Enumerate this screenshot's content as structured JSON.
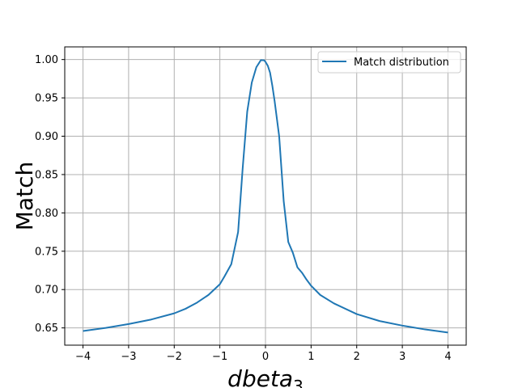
{
  "chart_data": {
    "type": "line",
    "title": "",
    "xlabel": "dbeta",
    "xlabel_subscript": "3",
    "ylabel": "Match",
    "xlim": [
      -4.4,
      4.4
    ],
    "ylim": [
      0.6275,
      1.0165
    ],
    "xticks": [
      -4,
      -3,
      -2,
      -1,
      0,
      1,
      2,
      3,
      4
    ],
    "xtick_labels": [
      "−4",
      "−3",
      "−2",
      "−1",
      "0",
      "1",
      "2",
      "3",
      "4"
    ],
    "yticks": [
      0.65,
      0.7,
      0.75,
      0.8,
      0.85,
      0.9,
      0.95,
      1.0
    ],
    "ytick_labels": [
      "0.65",
      "0.70",
      "0.75",
      "0.80",
      "0.85",
      "0.90",
      "0.95",
      "1.00"
    ],
    "grid": true,
    "legend_position": "top-right",
    "series": [
      {
        "name": "Match distribution",
        "color": "#1f77b4",
        "x": [
          -4.0,
          -3.5,
          -3.0,
          -2.5,
          -2.0,
          -1.75,
          -1.5,
          -1.25,
          -1.0,
          -0.9,
          -0.75,
          -0.6,
          -0.5,
          -0.4,
          -0.3,
          -0.2,
          -0.1,
          -0.03,
          0.0,
          0.05,
          0.1,
          0.15,
          0.2,
          0.3,
          0.4,
          0.5,
          0.6,
          0.7,
          0.8,
          0.9,
          1.0,
          1.2,
          1.5,
          2.0,
          2.5,
          3.0,
          3.5,
          4.0
        ],
        "y": [
          0.646,
          0.65,
          0.655,
          0.661,
          0.669,
          0.675,
          0.683,
          0.693,
          0.707,
          0.717,
          0.733,
          0.775,
          0.858,
          0.932,
          0.97,
          0.99,
          0.9993,
          0.999,
          0.997,
          0.992,
          0.983,
          0.966,
          0.946,
          0.9,
          0.815,
          0.762,
          0.748,
          0.729,
          0.722,
          0.713,
          0.705,
          0.693,
          0.682,
          0.668,
          0.659,
          0.653,
          0.648,
          0.644
        ]
      }
    ]
  }
}
